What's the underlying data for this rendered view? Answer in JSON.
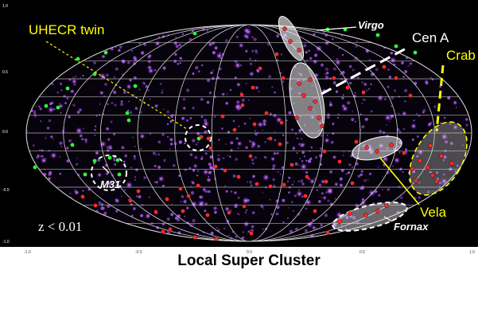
{
  "figure": {
    "labels": {
      "uhecr_twin": "UHECR twin",
      "virgo": "Virgo",
      "cen_a": "Cen A",
      "crab": "Crab",
      "m31": "M31",
      "vela": "Vela",
      "fornax": "Fornax",
      "redshift_cut": "z < 0.01",
      "caption": "Local Super Cluster"
    },
    "axis_ticks": {
      "y": [
        "1.0",
        "0.5",
        "0.0",
        "-0.5",
        "-1.0"
      ],
      "x": [
        "-1.0",
        "-0.5",
        "0.0",
        "0.5",
        "1.0"
      ]
    },
    "colors": {
      "background": "#000000",
      "grid": "#d9d9d9",
      "glow": "#b45cff",
      "red_event": "#ff2a2a",
      "green_event": "#2bff3a",
      "label_yellow": "#ffff00",
      "label_white": "#ffffff"
    }
  }
}
